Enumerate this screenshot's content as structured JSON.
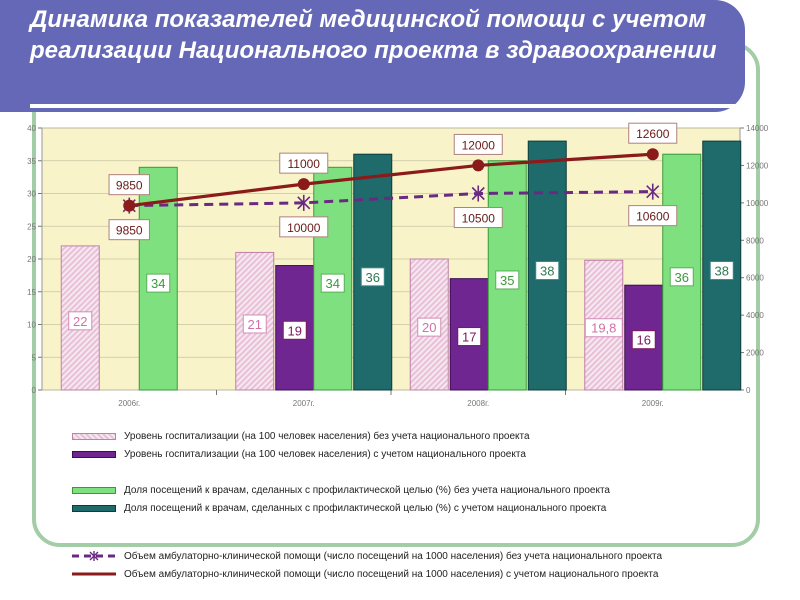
{
  "page": {
    "title": "Динамика показателей медицинской помощи с учетом реализации Национального проекта в здравоохранении"
  },
  "colors": {
    "title_bg": "#6468b6",
    "frame": "#a2cda6",
    "plot_bg": "#f8f3c8",
    "hatch": "#e8c0d8",
    "purple": "#6f2690",
    "green": "#7fe07f",
    "teal": "#1f6b6b",
    "line_solid": "#8b1a1a",
    "line_dashed": "#6a2a82"
  },
  "chart_data": {
    "type": "bar",
    "categories": [
      "2006г.",
      "2007г.",
      "2008г.",
      "2009г."
    ],
    "ylim_left": [
      0,
      40
    ],
    "ylim_right": [
      0,
      14000
    ],
    "yticks_left": [
      "0",
      "5",
      "10",
      "15",
      "20",
      "25",
      "30",
      "35",
      "40"
    ],
    "yticks_right": [
      "0",
      "2000",
      "4000",
      "6000",
      "8000",
      "10000",
      "12000",
      "14000"
    ],
    "series": [
      {
        "name": "Уровень госпитализации (на 100 человек населения) без учета национального проекта",
        "kind": "bar",
        "axis": "left",
        "style": "hatch",
        "values": [
          22,
          21,
          20,
          19.8
        ],
        "labels": [
          "22",
          "21",
          "20",
          "19,8"
        ]
      },
      {
        "name": "Уровень госпитализации (на 100 человек населения) с учетом национального проекта",
        "kind": "bar",
        "axis": "left",
        "style": "purple",
        "values": [
          null,
          19,
          17,
          16
        ],
        "labels": [
          "",
          "19",
          "17",
          "16"
        ]
      },
      {
        "name": "Доля посещений к врачам, сделанных с профилактической целью (%) без учета национального проекта",
        "kind": "bar",
        "axis": "left",
        "style": "green",
        "values": [
          34,
          34,
          35,
          36
        ],
        "labels": [
          "34",
          "34",
          "35",
          "36"
        ]
      },
      {
        "name": "Доля посещений к врачам, сделанных с профилактической целью (%) с учетом национального проекта",
        "kind": "bar",
        "axis": "left",
        "style": "teal",
        "values": [
          null,
          36,
          38,
          38
        ],
        "labels": [
          "",
          "36",
          "38",
          "38"
        ]
      },
      {
        "name": "Объем амбулаторно-клинической помощи (число посещений на 1000 населения) без учета национального проекта",
        "kind": "line",
        "axis": "right",
        "style": "dashed",
        "values": [
          9850,
          10000,
          10500,
          10600
        ],
        "labels": [
          "9850",
          "10000",
          "10500",
          "10600"
        ]
      },
      {
        "name": "Объем амбулаторно-клинической помощи (число посещений на 1000 населения) с учетом национального проекта",
        "kind": "line",
        "axis": "right",
        "style": "solid",
        "values": [
          9850,
          11000,
          12000,
          12600
        ],
        "labels": [
          "9850",
          "11000",
          "12000",
          "12600"
        ]
      }
    ]
  }
}
